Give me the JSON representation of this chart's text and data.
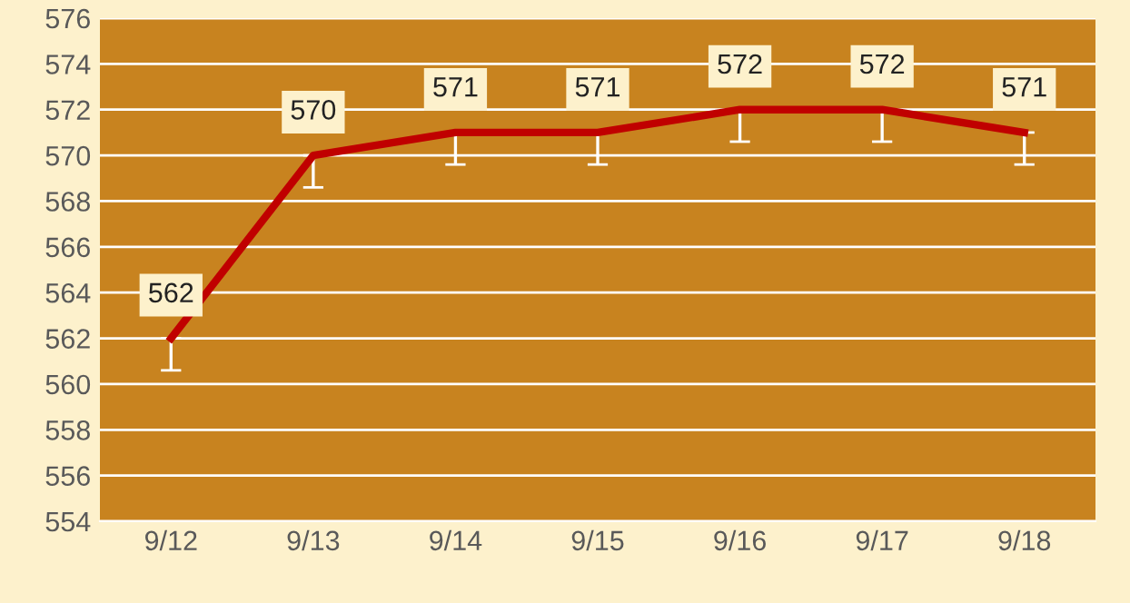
{
  "chart_data": {
    "type": "line",
    "categories": [
      "9/12",
      "9/13",
      "9/14",
      "9/15",
      "9/16",
      "9/17",
      "9/18"
    ],
    "series": [
      {
        "color": "#c00000",
        "values": [
          562,
          570,
          571,
          571,
          572,
          572,
          571
        ],
        "errors": [
          [
            560.6,
            562
          ],
          [
            568.6,
            570
          ],
          [
            569.6,
            571
          ],
          [
            569.6,
            571
          ],
          [
            570.6,
            572
          ],
          [
            570.6,
            572
          ],
          [
            569.6,
            571
          ]
        ]
      }
    ],
    "data_labels": true,
    "ylim": [
      554,
      576
    ],
    "yticks": [
      554,
      556,
      558,
      560,
      562,
      564,
      566,
      568,
      570,
      572,
      574,
      576
    ],
    "grid": "y",
    "marker": "none",
    "line_style": "solid"
  }
}
